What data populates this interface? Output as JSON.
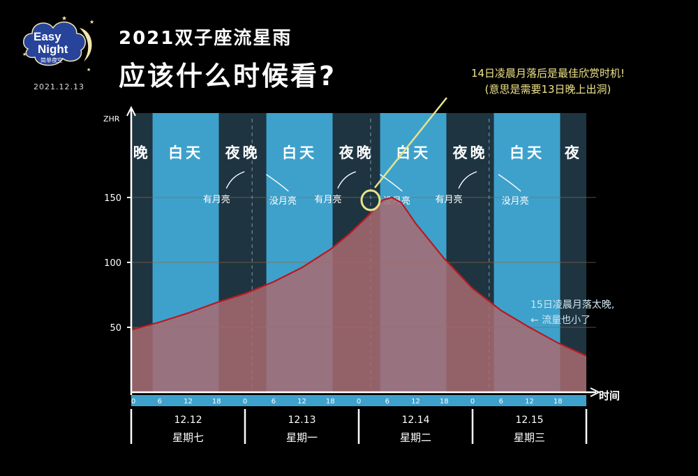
{
  "header": {
    "logo_line1": "Easy",
    "logo_line2": "Night",
    "logo_sub": "简单夜空",
    "date": "2021.12.13",
    "title": "2021双子座流星雨",
    "subtitle": "应该什么时候看?"
  },
  "annotations": {
    "best": "14日凌晨月落后是最佳欣赏时机!",
    "best_note": "(意思是需要13日晚上出洞)",
    "late_line1": "15日凌晨月落太晚,",
    "late_line2": "流量也小了"
  },
  "colors": {
    "day": "#3ea1cc",
    "night": "#1e3441",
    "curve": "#b81a1f",
    "fill": "#a86a70",
    "highlight": "#e7e48a",
    "axis": "#ffffff"
  },
  "chart_data": {
    "type": "area",
    "ylabel": "ZHR",
    "xlabel": "时间",
    "yticks": [
      50,
      100,
      150
    ],
    "ylim": [
      0,
      215
    ],
    "xlim": [
      0,
      96
    ],
    "x_ticks": [
      {
        "x": 0,
        "label": "0"
      },
      {
        "x": 6,
        "label": "6"
      },
      {
        "x": 12,
        "label": "12"
      },
      {
        "x": 18,
        "label": "18"
      },
      {
        "x": 24,
        "label": "0"
      },
      {
        "x": 30,
        "label": "6"
      },
      {
        "x": 36,
        "label": "12"
      },
      {
        "x": 42,
        "label": "18"
      },
      {
        "x": 48,
        "label": "0"
      },
      {
        "x": 54,
        "label": "6"
      },
      {
        "x": 60,
        "label": "12"
      },
      {
        "x": 66,
        "label": "18"
      },
      {
        "x": 72,
        "label": "0"
      },
      {
        "x": 78,
        "label": "6"
      },
      {
        "x": 84,
        "label": "12"
      },
      {
        "x": 90,
        "label": "18"
      }
    ],
    "days": [
      {
        "date": "12.12",
        "weekday": "星期七"
      },
      {
        "date": "12.13",
        "weekday": "星期一"
      },
      {
        "date": "12.14",
        "weekday": "星期二"
      },
      {
        "date": "12.15",
        "weekday": "星期三"
      }
    ],
    "bands": [
      {
        "start": 0,
        "end": 4.5,
        "type": "night",
        "label": "晚"
      },
      {
        "start": 4.5,
        "end": 18.5,
        "type": "day",
        "label": "白天"
      },
      {
        "start": 18.5,
        "end": 28.5,
        "type": "night",
        "label": "夜晚"
      },
      {
        "start": 28.5,
        "end": 42.5,
        "type": "day",
        "label": "白天"
      },
      {
        "start": 42.5,
        "end": 52.5,
        "type": "night",
        "label": "夜晚"
      },
      {
        "start": 52.5,
        "end": 66.5,
        "type": "day",
        "label": "白天"
      },
      {
        "start": 66.5,
        "end": 76.5,
        "type": "night",
        "label": "夜晚"
      },
      {
        "start": 76.5,
        "end": 90.5,
        "type": "day",
        "label": "白天"
      },
      {
        "start": 90.5,
        "end": 96,
        "type": "night",
        "label": "夜"
      }
    ],
    "moonsets": [
      25.5,
      50.5,
      75.5
    ],
    "moon_labels": [
      {
        "x": 18,
        "text": "有月亮"
      },
      {
        "x": 32,
        "text": "没月亮"
      },
      {
        "x": 41.5,
        "text": "有月亮"
      },
      {
        "x": 56,
        "text": "没月亮"
      },
      {
        "x": 67,
        "text": "有月亮"
      },
      {
        "x": 81,
        "text": "没月亮"
      }
    ],
    "series": [
      {
        "x": [
          0,
          6,
          12,
          18,
          24,
          30,
          36,
          42,
          46,
          50,
          53,
          55,
          57,
          60,
          66,
          72,
          78,
          84,
          90,
          96
        ],
        "values": [
          48,
          54,
          61,
          69,
          76,
          85,
          96,
          110,
          122,
          136,
          148,
          150,
          146,
          130,
          103,
          80,
          63,
          50,
          38,
          28
        ]
      }
    ]
  }
}
